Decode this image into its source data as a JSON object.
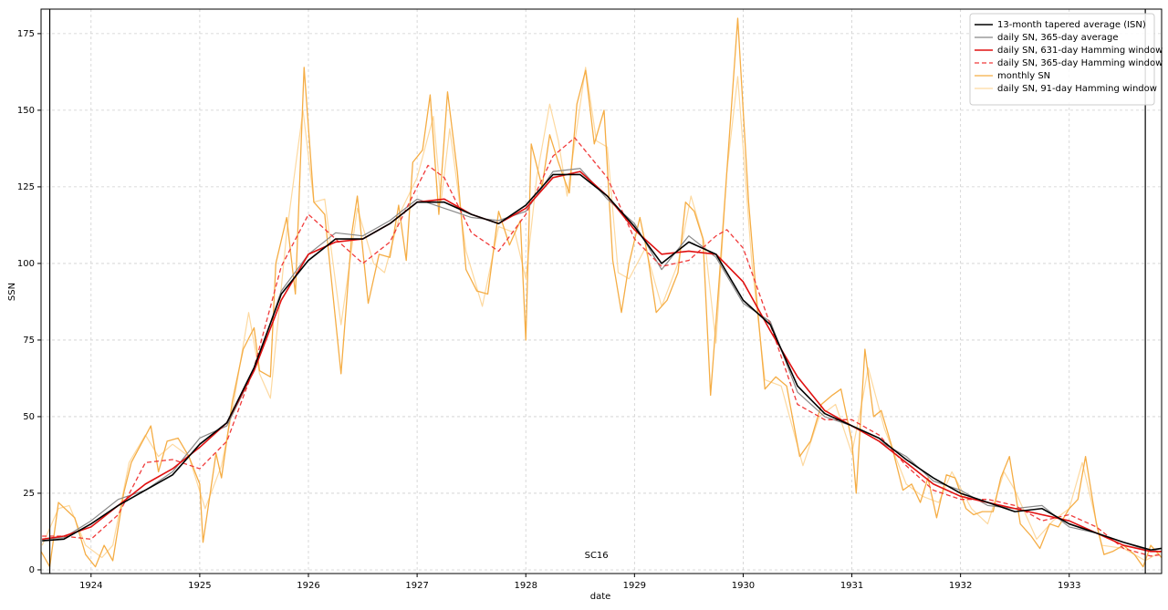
{
  "chart_data": {
    "type": "line",
    "xlabel": "date",
    "ylabel": "SSN",
    "xlim": [
      1923.54,
      1933.85
    ],
    "xticks": [
      1924,
      1925,
      1926,
      1927,
      1928,
      1929,
      1930,
      1931,
      1932,
      1933
    ],
    "ylim": [
      -1.2,
      183
    ],
    "yticks": [
      0,
      25,
      50,
      75,
      100,
      125,
      150,
      175
    ],
    "grid": true,
    "legend": "upper right",
    "vlines": [
      1923.62,
      1933.7
    ],
    "annotation": {
      "text": "SC16",
      "x": 1928.65,
      "y": 3
    },
    "series": [
      {
        "name": "13-month tapered average (ISN)",
        "color": "#000000",
        "linestyle": "solid",
        "width": 1.6,
        "x": [
          1923.55,
          1923.75,
          1924.0,
          1924.25,
          1924.5,
          1924.75,
          1925.0,
          1925.25,
          1925.5,
          1925.75,
          1926.0,
          1926.25,
          1926.5,
          1926.75,
          1927.0,
          1927.25,
          1927.5,
          1927.75,
          1928.0,
          1928.25,
          1928.5,
          1928.75,
          1929.0,
          1929.25,
          1929.5,
          1929.75,
          1930.0,
          1930.25,
          1930.5,
          1930.75,
          1931.0,
          1931.25,
          1931.5,
          1931.75,
          1932.0,
          1932.25,
          1932.5,
          1932.75,
          1933.0,
          1933.25,
          1933.5,
          1933.75,
          1933.85
        ],
        "values": [
          9.5,
          10,
          15,
          21,
          26,
          31,
          41,
          48,
          66,
          90,
          101,
          108,
          108,
          113,
          120,
          120,
          116,
          113,
          119,
          129,
          129,
          122,
          112,
          100,
          107,
          103,
          88,
          80,
          60,
          51,
          47,
          43,
          36,
          30,
          25,
          22,
          19,
          20,
          15,
          12,
          9,
          6.5,
          7
        ]
      },
      {
        "name": "daily SN, 365-day average",
        "color": "#888888",
        "linestyle": "solid",
        "width": 1.2,
        "x": [
          1923.55,
          1923.75,
          1924.0,
          1924.25,
          1924.5,
          1924.75,
          1925.0,
          1925.25,
          1925.5,
          1925.75,
          1926.0,
          1926.25,
          1926.5,
          1926.75,
          1927.0,
          1927.25,
          1927.5,
          1927.75,
          1928.0,
          1928.25,
          1928.5,
          1928.75,
          1929.0,
          1929.25,
          1929.5,
          1929.75,
          1930.0,
          1930.25,
          1930.5,
          1930.75,
          1931.0,
          1931.25,
          1931.5,
          1931.75,
          1932.0,
          1932.25,
          1932.5,
          1932.75,
          1933.0,
          1933.25,
          1933.5,
          1933.75,
          1933.85
        ],
        "values": [
          10,
          10.5,
          16,
          23,
          26,
          32,
          43,
          47,
          65,
          91,
          103,
          110,
          109,
          114,
          121,
          118,
          115,
          114,
          117,
          130,
          131,
          121,
          113,
          98,
          109,
          102,
          87,
          81,
          58,
          50,
          47,
          42,
          37,
          29,
          26,
          21,
          20,
          21,
          14,
          12,
          9,
          6,
          7
        ]
      },
      {
        "name": "daily SN, 631-day Hamming window",
        "color": "#e01010",
        "linestyle": "solid",
        "width": 1.6,
        "x": [
          1923.55,
          1923.75,
          1924.0,
          1924.25,
          1924.5,
          1924.75,
          1925.0,
          1925.25,
          1925.5,
          1925.75,
          1926.0,
          1926.25,
          1926.5,
          1926.75,
          1927.0,
          1927.25,
          1927.5,
          1927.75,
          1928.0,
          1928.25,
          1928.5,
          1928.75,
          1929.0,
          1929.25,
          1929.5,
          1929.75,
          1930.0,
          1930.25,
          1930.5,
          1930.75,
          1931.0,
          1931.25,
          1931.5,
          1931.75,
          1932.0,
          1932.25,
          1932.5,
          1932.75,
          1933.0,
          1933.25,
          1933.5,
          1933.75,
          1933.85
        ],
        "values": [
          10,
          11,
          14,
          21,
          28,
          33,
          40,
          48,
          65,
          88,
          103,
          107,
          108,
          113,
          120,
          121,
          116,
          113,
          118,
          128,
          130,
          122,
          111,
          103,
          104,
          103,
          94,
          78,
          63,
          52,
          47,
          42,
          35,
          28,
          24,
          22,
          20,
          18,
          16,
          12,
          8,
          6,
          6
        ]
      },
      {
        "name": "daily SN, 365-day Hamming window",
        "color": "#f03a3a",
        "linestyle": "dashed",
        "width": 1.3,
        "x": [
          1923.55,
          1923.75,
          1924.0,
          1924.25,
          1924.5,
          1924.75,
          1925.0,
          1925.25,
          1925.5,
          1925.75,
          1926.0,
          1926.25,
          1926.5,
          1926.75,
          1927.0,
          1927.1,
          1927.25,
          1927.5,
          1927.75,
          1928.0,
          1928.25,
          1928.45,
          1928.75,
          1929.0,
          1929.25,
          1929.5,
          1929.75,
          1929.85,
          1930.0,
          1930.25,
          1930.5,
          1930.75,
          1931.0,
          1931.25,
          1931.5,
          1931.75,
          1932.0,
          1932.25,
          1932.5,
          1932.75,
          1933.0,
          1933.25,
          1933.5,
          1933.75,
          1933.85
        ],
        "values": [
          11,
          11,
          10,
          18,
          35,
          36,
          33,
          42,
          66,
          99,
          116,
          108,
          100,
          107,
          125,
          132,
          128,
          110,
          104,
          116,
          135,
          141,
          128,
          108,
          99,
          101,
          109,
          111,
          105,
          80,
          54,
          49,
          49,
          44,
          34,
          26,
          23,
          23,
          21,
          16,
          18,
          14,
          7,
          4.5,
          5
        ]
      },
      {
        "name": "monthly SN",
        "color": "#f5ad45",
        "linestyle": "solid",
        "width": 1.3,
        "x": [
          1923.54,
          1923.62,
          1923.7,
          1923.85,
          1923.95,
          1924.04,
          1924.12,
          1924.2,
          1924.3,
          1924.37,
          1924.55,
          1924.62,
          1924.7,
          1924.8,
          1924.9,
          1925.0,
          1925.03,
          1925.15,
          1925.2,
          1925.3,
          1925.4,
          1925.5,
          1925.55,
          1925.65,
          1925.7,
          1925.8,
          1925.88,
          1925.96,
          1926.05,
          1926.15,
          1926.3,
          1926.4,
          1926.45,
          1926.55,
          1926.65,
          1926.75,
          1926.83,
          1926.9,
          1926.96,
          1927.05,
          1927.12,
          1927.2,
          1927.28,
          1927.37,
          1927.45,
          1927.55,
          1927.65,
          1927.75,
          1927.85,
          1927.95,
          1928.0,
          1928.05,
          1928.15,
          1928.22,
          1928.3,
          1928.4,
          1928.47,
          1928.55,
          1928.63,
          1928.72,
          1928.8,
          1928.88,
          1928.95,
          1929.05,
          1929.12,
          1929.2,
          1929.3,
          1929.4,
          1929.47,
          1929.55,
          1929.63,
          1929.7,
          1929.78,
          1929.87,
          1929.95,
          1930.05,
          1930.12,
          1930.2,
          1930.3,
          1930.4,
          1930.52,
          1930.62,
          1930.72,
          1930.82,
          1930.9,
          1931.0,
          1931.04,
          1931.12,
          1931.2,
          1931.27,
          1931.37,
          1931.47,
          1931.55,
          1931.63,
          1931.7,
          1931.78,
          1931.87,
          1931.95,
          1932.05,
          1932.12,
          1932.2,
          1932.3,
          1932.37,
          1932.45,
          1932.55,
          1932.65,
          1932.73,
          1932.82,
          1932.9,
          1933.0,
          1933.08,
          1933.15,
          1933.25,
          1933.32,
          1933.4,
          1933.5,
          1933.6,
          1933.68,
          1933.75,
          1933.85
        ],
        "values": [
          6,
          1,
          22,
          17,
          5,
          1,
          8,
          3,
          25,
          35,
          47,
          32,
          42,
          43,
          37,
          28,
          9,
          38,
          30,
          55,
          72,
          79,
          65,
          63,
          100,
          115,
          90,
          164,
          120,
          116,
          64,
          110,
          122,
          87,
          103,
          102,
          119,
          101,
          133,
          137,
          155,
          116,
          156,
          130,
          98,
          91,
          90,
          117,
          106,
          114,
          75,
          139,
          125,
          142,
          133,
          123,
          152,
          163,
          139,
          150,
          101,
          84,
          100,
          115,
          103,
          84,
          88,
          97,
          120,
          117,
          108,
          57,
          95,
          140,
          180,
          120,
          90,
          59,
          63,
          60,
          37,
          42,
          54,
          57,
          59,
          42,
          25,
          72,
          50,
          52,
          40,
          26,
          28,
          22,
          30,
          17,
          31,
          30,
          20,
          18,
          19,
          19,
          30,
          37,
          15,
          11,
          7,
          15,
          14,
          20,
          23,
          37,
          15,
          5,
          6,
          8,
          5,
          1,
          8,
          4
        ]
      },
      {
        "name": "daily SN, 91-day Hamming window",
        "color": "#fdd9a0",
        "linestyle": "solid",
        "width": 1.2,
        "x": [
          1923.55,
          1923.7,
          1923.8,
          1923.95,
          1924.1,
          1924.2,
          1924.35,
          1924.5,
          1924.62,
          1924.75,
          1924.9,
          1925.05,
          1925.2,
          1925.3,
          1925.45,
          1925.55,
          1925.65,
          1925.8,
          1925.95,
          1926.05,
          1926.15,
          1926.3,
          1926.45,
          1926.6,
          1926.7,
          1926.85,
          1927.0,
          1927.15,
          1927.22,
          1927.3,
          1927.45,
          1927.6,
          1927.75,
          1927.9,
          1928.0,
          1928.1,
          1928.22,
          1928.3,
          1928.38,
          1928.55,
          1928.65,
          1928.75,
          1928.85,
          1928.95,
          1929.1,
          1929.25,
          1929.4,
          1929.52,
          1929.65,
          1929.75,
          1929.85,
          1929.95,
          1930.08,
          1930.2,
          1930.35,
          1930.55,
          1930.7,
          1930.85,
          1931.0,
          1931.1,
          1931.15,
          1931.3,
          1931.5,
          1931.65,
          1931.8,
          1931.92,
          1932.1,
          1932.25,
          1932.4,
          1932.5,
          1932.7,
          1932.85,
          1933.0,
          1933.12,
          1933.3,
          1933.5,
          1933.7,
          1933.85
        ],
        "values": [
          8,
          20,
          21,
          8,
          4,
          8,
          35,
          44,
          37,
          41,
          37,
          20,
          34,
          52,
          84,
          64,
          56,
          110,
          150,
          120,
          121,
          80,
          118,
          100,
          97,
          117,
          128,
          148,
          120,
          144,
          104,
          86,
          112,
          110,
          95,
          128,
          152,
          140,
          122,
          164,
          140,
          138,
          97,
          95,
          105,
          86,
          100,
          122,
          106,
          74,
          130,
          161,
          100,
          62,
          60,
          34,
          50,
          54,
          38,
          56,
          66,
          46,
          28,
          24,
          22,
          32,
          20,
          15,
          32,
          26,
          10,
          16,
          20,
          35,
          8,
          7,
          3,
          6
        ]
      }
    ]
  }
}
